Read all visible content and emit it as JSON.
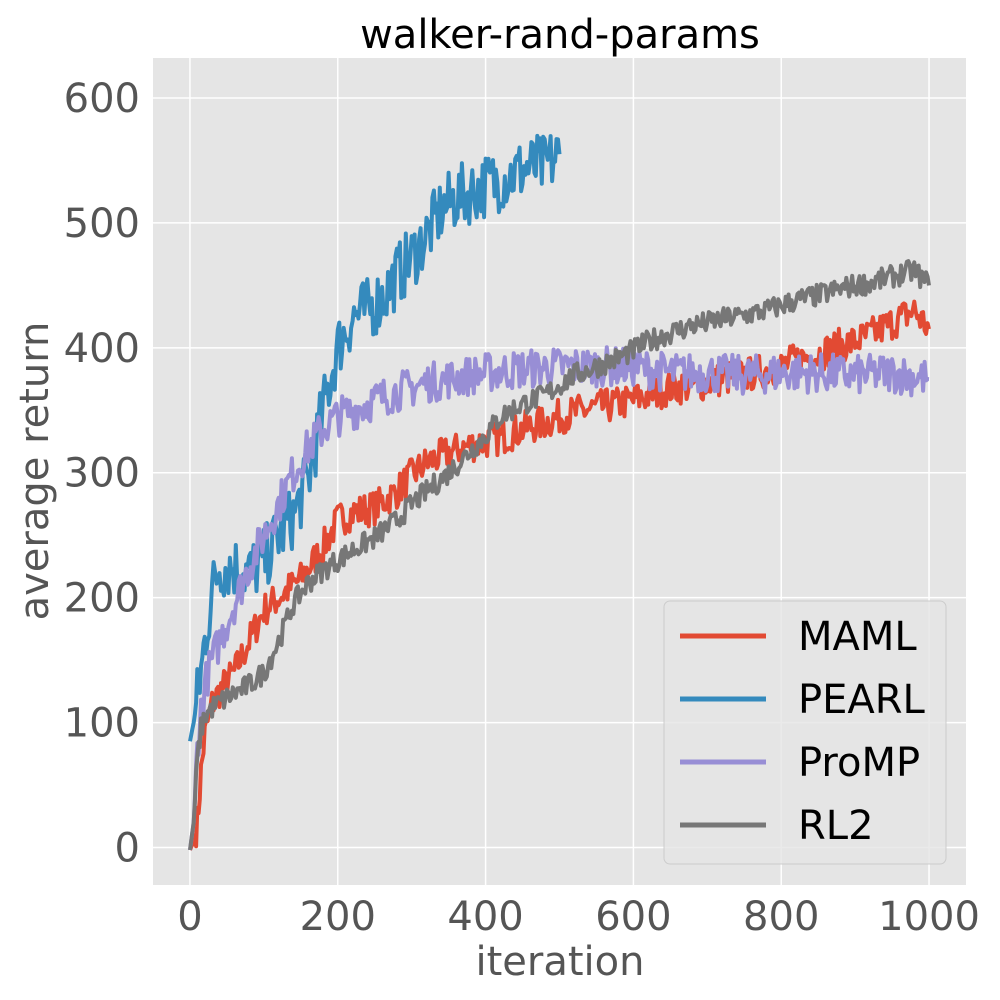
{
  "chart_data": {
    "type": "line",
    "title": "walker-rand-params",
    "xlabel": "iteration",
    "ylabel": "average return",
    "xlim": [
      -50,
      1050
    ],
    "ylim": [
      -30,
      632
    ],
    "xticks": [
      0,
      200,
      400,
      600,
      800,
      1000
    ],
    "yticks": [
      0,
      100,
      200,
      300,
      400,
      500,
      600
    ],
    "grid": true,
    "legend_position": "lower-right",
    "background": "#e5e5e5",
    "series": [
      {
        "name": "MAML",
        "color": "#e24a33",
        "points": [
          [
            0,
            -2
          ],
          [
            5,
            5
          ],
          [
            10,
            20
          ],
          [
            15,
            60
          ],
          [
            20,
            90
          ],
          [
            30,
            115
          ],
          [
            40,
            125
          ],
          [
            60,
            140
          ],
          [
            80,
            165
          ],
          [
            100,
            190
          ],
          [
            120,
            200
          ],
          [
            150,
            215
          ],
          [
            180,
            240
          ],
          [
            200,
            262
          ],
          [
            220,
            268
          ],
          [
            250,
            272
          ],
          [
            280,
            285
          ],
          [
            300,
            298
          ],
          [
            320,
            308
          ],
          [
            350,
            316
          ],
          [
            380,
            322
          ],
          [
            400,
            325
          ],
          [
            420,
            328
          ],
          [
            450,
            335
          ],
          [
            480,
            340
          ],
          [
            500,
            345
          ],
          [
            520,
            348
          ],
          [
            550,
            352
          ],
          [
            580,
            355
          ],
          [
            600,
            358
          ],
          [
            620,
            362
          ],
          [
            650,
            368
          ],
          [
            680,
            370
          ],
          [
            700,
            372
          ],
          [
            720,
            375
          ],
          [
            750,
            378
          ],
          [
            780,
            382
          ],
          [
            800,
            385
          ],
          [
            820,
            390
          ],
          [
            850,
            395
          ],
          [
            880,
            402
          ],
          [
            900,
            405
          ],
          [
            920,
            410
          ],
          [
            950,
            420
          ],
          [
            980,
            430
          ],
          [
            1000,
            415
          ]
        ]
      },
      {
        "name": "PEARL",
        "color": "#348abd",
        "points": [
          [
            0,
            85
          ],
          [
            5,
            100
          ],
          [
            10,
            120
          ],
          [
            15,
            140
          ],
          [
            20,
            165
          ],
          [
            30,
            205
          ],
          [
            40,
            225
          ],
          [
            60,
            225
          ],
          [
            80,
            220
          ],
          [
            100,
            230
          ],
          [
            120,
            250
          ],
          [
            140,
            265
          ],
          [
            160,
            295
          ],
          [
            180,
            350
          ],
          [
            200,
            400
          ],
          [
            220,
            425
          ],
          [
            240,
            430
          ],
          [
            260,
            440
          ],
          [
            280,
            458
          ],
          [
            300,
            472
          ],
          [
            320,
            490
          ],
          [
            340,
            510
          ],
          [
            360,
            520
          ],
          [
            380,
            525
          ],
          [
            400,
            530
          ],
          [
            420,
            535
          ],
          [
            440,
            540
          ],
          [
            460,
            545
          ],
          [
            480,
            545
          ],
          [
            500,
            555
          ]
        ]
      },
      {
        "name": "ProMP",
        "color": "#988ed5",
        "points": [
          [
            0,
            -2
          ],
          [
            5,
            20
          ],
          [
            10,
            80
          ],
          [
            15,
            110
          ],
          [
            20,
            130
          ],
          [
            30,
            150
          ],
          [
            40,
            165
          ],
          [
            60,
            195
          ],
          [
            80,
            225
          ],
          [
            100,
            250
          ],
          [
            120,
            275
          ],
          [
            140,
            300
          ],
          [
            160,
            320
          ],
          [
            180,
            335
          ],
          [
            200,
            345
          ],
          [
            220,
            350
          ],
          [
            250,
            358
          ],
          [
            280,
            365
          ],
          [
            300,
            368
          ],
          [
            320,
            372
          ],
          [
            350,
            375
          ],
          [
            380,
            378
          ],
          [
            400,
            380
          ],
          [
            450,
            383
          ],
          [
            500,
            385
          ],
          [
            550,
            385
          ],
          [
            600,
            385
          ],
          [
            650,
            380
          ],
          [
            700,
            380
          ],
          [
            750,
            378
          ],
          [
            800,
            380
          ],
          [
            850,
            380
          ],
          [
            900,
            378
          ],
          [
            950,
            380
          ],
          [
            1000,
            375
          ]
        ]
      },
      {
        "name": "RL2",
        "color": "#777777",
        "points": [
          [
            0,
            -2
          ],
          [
            5,
            20
          ],
          [
            10,
            70
          ],
          [
            15,
            95
          ],
          [
            20,
            105
          ],
          [
            30,
            112
          ],
          [
            50,
            120
          ],
          [
            80,
            130
          ],
          [
            100,
            140
          ],
          [
            120,
            165
          ],
          [
            140,
            195
          ],
          [
            160,
            212
          ],
          [
            180,
            222
          ],
          [
            200,
            230
          ],
          [
            220,
            238
          ],
          [
            250,
            248
          ],
          [
            280,
            262
          ],
          [
            300,
            275
          ],
          [
            320,
            285
          ],
          [
            350,
            300
          ],
          [
            380,
            318
          ],
          [
            400,
            330
          ],
          [
            420,
            345
          ],
          [
            450,
            355
          ],
          [
            480,
            362
          ],
          [
            500,
            370
          ],
          [
            520,
            378
          ],
          [
            550,
            385
          ],
          [
            580,
            392
          ],
          [
            600,
            398
          ],
          [
            620,
            405
          ],
          [
            650,
            412
          ],
          [
            680,
            418
          ],
          [
            700,
            420
          ],
          [
            720,
            423
          ],
          [
            750,
            426
          ],
          [
            780,
            430
          ],
          [
            800,
            434
          ],
          [
            820,
            438
          ],
          [
            850,
            442
          ],
          [
            880,
            447
          ],
          [
            900,
            450
          ],
          [
            920,
            452
          ],
          [
            950,
            457
          ],
          [
            980,
            462
          ],
          [
            1000,
            450
          ]
        ]
      }
    ]
  }
}
